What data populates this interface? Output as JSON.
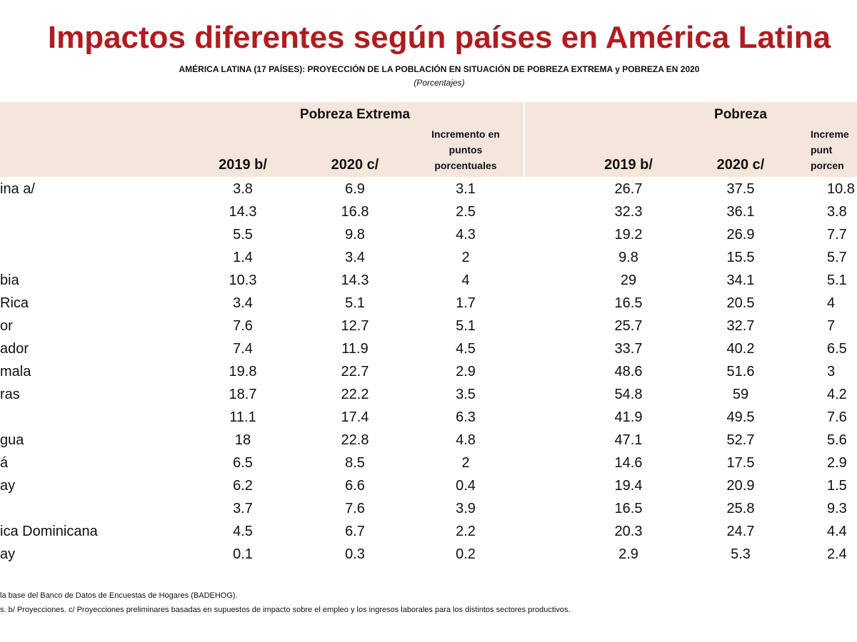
{
  "header": {
    "title": "Impactos diferentes según países en América Latina",
    "subtitle": "AMÉRICA LATINA (17 PAÍSES): PROYECCIÓN DE LA POBLACIÓN EN SITUACIÓN DE POBREZA EXTREMA y POBREZA EN 2020",
    "unit": "(Porcentajes)"
  },
  "table": {
    "groups": [
      "Pobreza Extrema",
      "Pobreza"
    ],
    "columns": [
      [
        "2019 b/"
      ],
      [
        "2020 c/"
      ],
      [
        "Incremento en",
        "puntos",
        "porcentuales"
      ],
      [
        "2019 b/"
      ],
      [
        "2020 c/"
      ],
      [
        "Increme",
        "punt",
        "porcen"
      ]
    ],
    "rows": [
      {
        "label": "ina a/",
        "values": [
          3.8,
          6.9,
          3.1,
          26.7,
          37.5,
          10.8
        ]
      },
      {
        "label": null,
        "values": [
          14.3,
          16.8,
          2.5,
          32.3,
          36.1,
          3.8
        ]
      },
      {
        "label": null,
        "values": [
          5.5,
          9.8,
          4.3,
          19.2,
          26.9,
          7.7
        ]
      },
      {
        "label": null,
        "values": [
          1.4,
          3.4,
          2.0,
          9.8,
          15.5,
          5.7
        ]
      },
      {
        "label": "bia",
        "values": [
          10.3,
          14.3,
          4.0,
          29.0,
          34.1,
          5.1
        ]
      },
      {
        "label": "Rica",
        "values": [
          3.4,
          5.1,
          1.7,
          16.5,
          20.5,
          4.0
        ]
      },
      {
        "label": "or",
        "values": [
          7.6,
          12.7,
          5.1,
          25.7,
          32.7,
          7.0
        ]
      },
      {
        "label": "ador",
        "values": [
          7.4,
          11.9,
          4.5,
          33.7,
          40.2,
          6.5
        ]
      },
      {
        "label": "mala",
        "values": [
          19.8,
          22.7,
          2.9,
          48.6,
          51.6,
          3.0
        ]
      },
      {
        "label": "ras",
        "values": [
          18.7,
          22.2,
          3.5,
          54.8,
          59.0,
          4.2
        ]
      },
      {
        "label": null,
        "values": [
          11.1,
          17.4,
          6.3,
          41.9,
          49.5,
          7.6
        ]
      },
      {
        "label": "gua",
        "values": [
          18.0,
          22.8,
          4.8,
          47.1,
          52.7,
          5.6
        ]
      },
      {
        "label": "á",
        "values": [
          6.5,
          8.5,
          2.0,
          14.6,
          17.5,
          2.9
        ]
      },
      {
        "label": "ay",
        "values": [
          6.2,
          6.6,
          0.4,
          19.4,
          20.9,
          1.5
        ]
      },
      {
        "label": null,
        "values": [
          3.7,
          7.6,
          3.9,
          16.5,
          25.8,
          9.3
        ]
      },
      {
        "label": "ica Dominicana",
        "values": [
          4.5,
          6.7,
          2.2,
          20.3,
          24.7,
          4.4
        ]
      },
      {
        "label": "ay",
        "values": [
          0.1,
          0.3,
          0.2,
          2.9,
          5.3,
          2.4
        ]
      }
    ]
  },
  "footer": {
    "notes": [
      "la base del Banco de Datos de Encuestas de Hogares (BADEHOG).",
      "s. b/ Proyecciones. c/ Proyecciones preliminares basadas en supuestos de impacto sobre el empleo y los ingresos laborales para los distintos sectores productivos."
    ]
  }
}
